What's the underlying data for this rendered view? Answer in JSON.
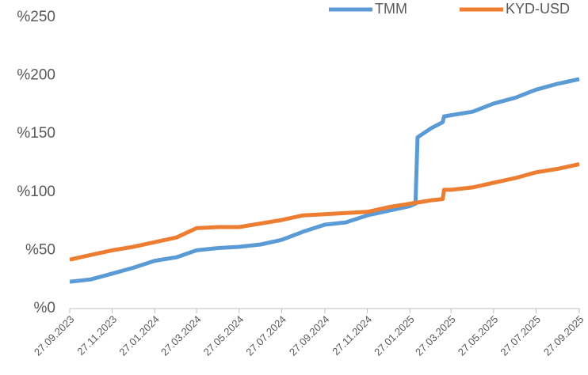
{
  "chart_data": {
    "type": "line",
    "x": [
      "27.09.2023",
      "27.10.2023",
      "27.11.2023",
      "27.12.2023",
      "27.01.2024",
      "27.02.2024",
      "27.03.2024",
      "27.04.2024",
      "27.05.2024",
      "27.06.2024",
      "27.07.2024",
      "27.08.2024",
      "27.09.2024",
      "27.10.2024",
      "27.11.2024",
      "27.12.2024",
      "27.01.2025",
      "04.02.2025",
      "07.02.2025",
      "27.02.2025",
      "15.03.2025",
      "17.03.2025",
      "27.03.2025",
      "27.04.2025",
      "27.05.2025",
      "27.06.2025",
      "27.07.2025",
      "27.08.2025",
      "27.09.2025"
    ],
    "series": [
      {
        "name": "TMM",
        "color": "#5b9bd5",
        "values": [
          23,
          25,
          30,
          35,
          41,
          44,
          50,
          52,
          53,
          55,
          59,
          66,
          72,
          74,
          80,
          84,
          88,
          90,
          147,
          155,
          160,
          165,
          166,
          169,
          176,
          181,
          188,
          193,
          197
        ]
      },
      {
        "name": "KYD-USD",
        "color": "#ed7d31",
        "values": [
          42,
          46,
          50,
          53,
          57,
          61,
          69,
          70,
          70,
          73,
          76,
          80,
          81,
          82,
          83,
          87,
          90,
          91,
          91,
          93,
          94,
          102,
          102,
          104,
          108,
          112,
          117,
          120,
          124
        ]
      }
    ],
    "xlim": [
      "27.09.2023",
      "27.09.2025"
    ],
    "xticks": [
      "27.09.2023",
      "27.11.2023",
      "27.01.2024",
      "27.03.2024",
      "27.05.2024",
      "27.07.2024",
      "27.09.2024",
      "27.11.2024",
      "27.01.2025",
      "27.03.2025",
      "27.05.2025",
      "27.07.2025",
      "27.09.2025"
    ],
    "ylim": [
      0,
      250
    ],
    "yticks": [
      {
        "value": 0,
        "label": "%0"
      },
      {
        "value": 50,
        "label": "%50"
      },
      {
        "value": 100,
        "label": "%100"
      },
      {
        "value": 150,
        "label": "%150"
      },
      {
        "value": 200,
        "label": "%200"
      },
      {
        "value": 250,
        "label": "%250"
      }
    ],
    "grid": false,
    "legend": "top-right"
  }
}
